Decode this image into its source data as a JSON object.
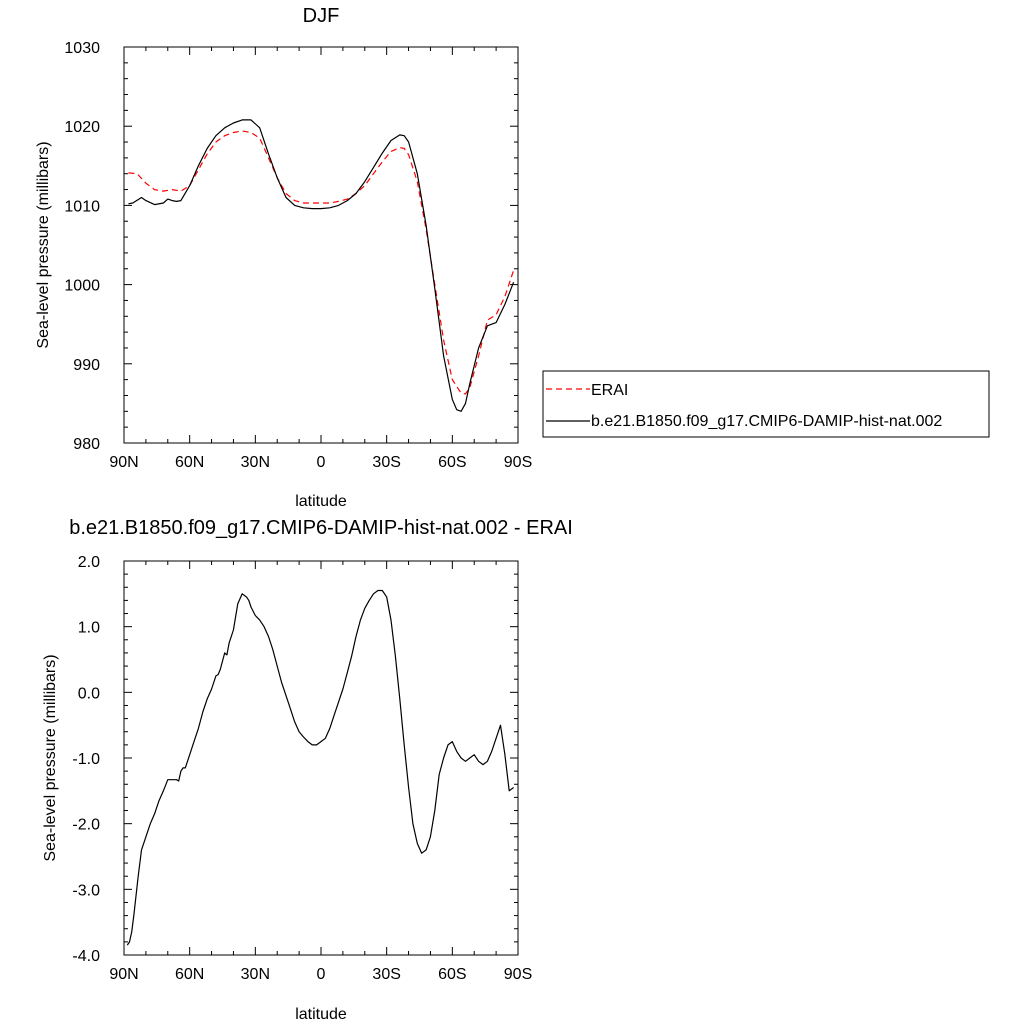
{
  "chart_data": [
    {
      "type": "line",
      "title": "DJF",
      "xlabel": "latitude",
      "ylabel": "Sea-level pressure (millibars)",
      "xlim": [
        90,
        -90
      ],
      "ylim": [
        980,
        1030
      ],
      "xticks": [
        90,
        60,
        30,
        0,
        -30,
        -60,
        -90
      ],
      "xtick_labels": [
        "90N",
        "60N",
        "30N",
        "0",
        "30S",
        "60S",
        "90S"
      ],
      "yticks": [
        980,
        990,
        1000,
        1010,
        1020,
        1030
      ],
      "ytick_labels": [
        "980",
        "990",
        "1000",
        "1010",
        "1020",
        "1030"
      ],
      "legend_position": "right",
      "series": [
        {
          "name": "ERAI",
          "color": "#ff0000",
          "dash": true,
          "x": [
            88,
            84,
            80,
            76,
            72,
            68,
            64,
            60,
            56,
            52,
            48,
            44,
            40,
            36,
            32,
            28,
            24,
            20,
            16,
            12,
            8,
            4,
            0,
            -4,
            -8,
            -12,
            -16,
            -20,
            -24,
            -28,
            -32,
            -36,
            -38,
            -40,
            -44,
            -48,
            -52,
            -56,
            -60,
            -64,
            -66,
            -68,
            -72,
            -76,
            -80,
            -84,
            -88
          ],
          "y": [
            1014.1,
            1014.0,
            1012.8,
            1012.0,
            1011.8,
            1012.0,
            1011.8,
            1012.5,
            1014.5,
            1016.5,
            1018.0,
            1018.8,
            1019.2,
            1019.4,
            1019.2,
            1018.5,
            1016.0,
            1013.5,
            1011.5,
            1010.6,
            1010.3,
            1010.3,
            1010.3,
            1010.3,
            1010.5,
            1010.8,
            1011.5,
            1012.5,
            1014.0,
            1015.5,
            1016.8,
            1017.3,
            1017.2,
            1016.4,
            1013.0,
            1007.0,
            1000.0,
            993.0,
            988.0,
            986.3,
            986.2,
            987.0,
            991.0,
            995.5,
            996.2,
            998.5,
            1001.8
          ]
        },
        {
          "name": "b.e21.B1850.f09_g17.CMIP6-DAMIP-hist-nat.002",
          "color": "#000000",
          "dash": false,
          "x": [
            88,
            86,
            82,
            80,
            76,
            72,
            70,
            68,
            66,
            64,
            60,
            56,
            52,
            48,
            44,
            40,
            36,
            32,
            28,
            24,
            20,
            16,
            12,
            8,
            4,
            0,
            -4,
            -8,
            -12,
            -16,
            -20,
            -24,
            -28,
            -32,
            -36,
            -38,
            -40,
            -44,
            -48,
            -52,
            -56,
            -60,
            -62,
            -64,
            -66,
            -68,
            -72,
            -76,
            -80,
            -84,
            -88
          ],
          "y": [
            1010.2,
            1010.3,
            1011.0,
            1010.6,
            1010.1,
            1010.3,
            1010.8,
            1010.6,
            1010.5,
            1010.6,
            1012.5,
            1015.0,
            1017.2,
            1018.8,
            1019.8,
            1020.4,
            1020.8,
            1020.8,
            1019.8,
            1016.5,
            1013.5,
            1011.0,
            1010.0,
            1009.7,
            1009.6,
            1009.6,
            1009.7,
            1010.0,
            1010.6,
            1011.5,
            1013.0,
            1014.8,
            1016.6,
            1018.2,
            1018.9,
            1018.8,
            1018.0,
            1014.0,
            1007.5,
            999.5,
            991.0,
            985.5,
            984.2,
            984.0,
            985.0,
            987.5,
            992.0,
            994.8,
            995.2,
            997.5,
            1000.3
          ]
        }
      ]
    },
    {
      "type": "line",
      "title": "b.e21.B1850.f09_g17.CMIP6-DAMIP-hist-nat.002 - ERAI",
      "xlabel": "latitude",
      "ylabel": "Sea-level pressure (millibars)",
      "xlim": [
        90,
        -90
      ],
      "ylim": [
        -4.0,
        2.0
      ],
      "xticks": [
        90,
        60,
        30,
        0,
        -30,
        -60,
        -90
      ],
      "xtick_labels": [
        "90N",
        "60N",
        "30N",
        "0",
        "30S",
        "60S",
        "90S"
      ],
      "yticks": [
        -4,
        -3,
        -2,
        -1,
        0,
        1,
        2
      ],
      "ytick_labels": [
        "-4.0",
        "-3.0",
        "-2.0",
        "-1.0",
        "0.0",
        "1.0",
        "2.0"
      ],
      "series": [
        {
          "color": "#000000",
          "dash": false,
          "x": [
            88.5,
            87.5,
            86.5,
            85.5,
            84.5,
            83.5,
            82,
            80,
            78,
            76,
            74,
            72,
            70,
            68,
            66,
            65,
            64,
            63,
            62,
            60,
            58,
            56,
            54,
            52,
            50,
            48,
            47,
            46,
            44,
            43,
            42,
            40,
            38,
            36,
            34,
            33,
            32,
            30,
            28,
            26,
            24,
            22,
            20,
            18,
            16,
            14,
            12,
            10,
            8,
            6,
            4,
            2,
            0,
            -2,
            -4,
            -6,
            -8,
            -10,
            -12,
            -14,
            -16,
            -18,
            -20,
            -22,
            -24,
            -26,
            -28,
            -30,
            -32,
            -34,
            -36,
            -38,
            -40,
            -42,
            -44,
            -46,
            -48,
            -50,
            -52,
            -54,
            -56,
            -58,
            -60,
            -62,
            -64,
            -66,
            -68,
            -70,
            -72,
            -74,
            -76,
            -78,
            -80,
            -82,
            -84,
            -86,
            -88
          ],
          "y": [
            -3.85,
            -3.8,
            -3.65,
            -3.4,
            -3.1,
            -2.8,
            -2.4,
            -2.2,
            -2.0,
            -1.85,
            -1.65,
            -1.5,
            -1.33,
            -1.33,
            -1.33,
            -1.35,
            -1.2,
            -1.15,
            -1.15,
            -0.95,
            -0.75,
            -0.55,
            -0.3,
            -0.1,
            0.05,
            0.25,
            0.27,
            0.35,
            0.6,
            0.57,
            0.75,
            0.95,
            1.35,
            1.5,
            1.45,
            1.4,
            1.3,
            1.17,
            1.1,
            1.0,
            0.85,
            0.65,
            0.4,
            0.15,
            -0.05,
            -0.25,
            -0.45,
            -0.6,
            -0.68,
            -0.75,
            -0.8,
            -0.8,
            -0.75,
            -0.7,
            -0.55,
            -0.35,
            -0.15,
            0.05,
            0.3,
            0.55,
            0.85,
            1.1,
            1.28,
            1.4,
            1.5,
            1.55,
            1.55,
            1.45,
            1.1,
            0.55,
            -0.1,
            -0.8,
            -1.45,
            -2.0,
            -2.3,
            -2.45,
            -2.4,
            -2.2,
            -1.8,
            -1.25,
            -1.0,
            -0.8,
            -0.75,
            -0.9,
            -1.0,
            -1.05,
            -1.0,
            -0.95,
            -1.05,
            -1.1,
            -1.05,
            -0.9,
            -0.7,
            -0.5,
            -0.95,
            -1.5,
            -1.45
          ]
        }
      ]
    }
  ]
}
